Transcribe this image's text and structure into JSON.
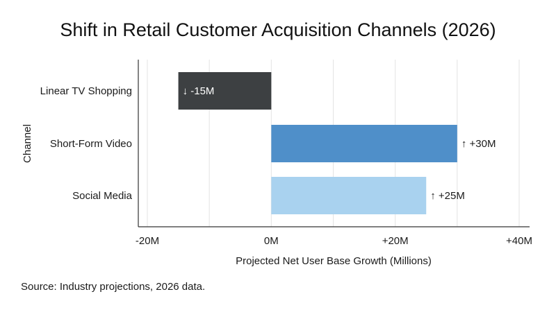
{
  "chart_data": {
    "type": "bar",
    "orientation": "horizontal",
    "title": "Shift in Retail Customer Acquisition Channels (2026)",
    "xlabel": "Projected Net User Base Growth (Millions)",
    "ylabel": "Channel",
    "xlim": [
      -20,
      40
    ],
    "ticks": [
      -20,
      0,
      20,
      40
    ],
    "tick_labels": [
      "-20M",
      "0M",
      "+20M",
      "+40M"
    ],
    "grid": true,
    "categories": [
      "Linear TV Shopping",
      "Short-Form Video",
      "Social Media"
    ],
    "values": [
      -15,
      30,
      25
    ],
    "data_labels": [
      "↓ -15M",
      "↑ +30M",
      "↑ +25M"
    ],
    "colors": [
      "#3d4042",
      "#4f8fc9",
      "#a9d2ef"
    ],
    "source": "Source: Industry projections, 2026 data."
  }
}
